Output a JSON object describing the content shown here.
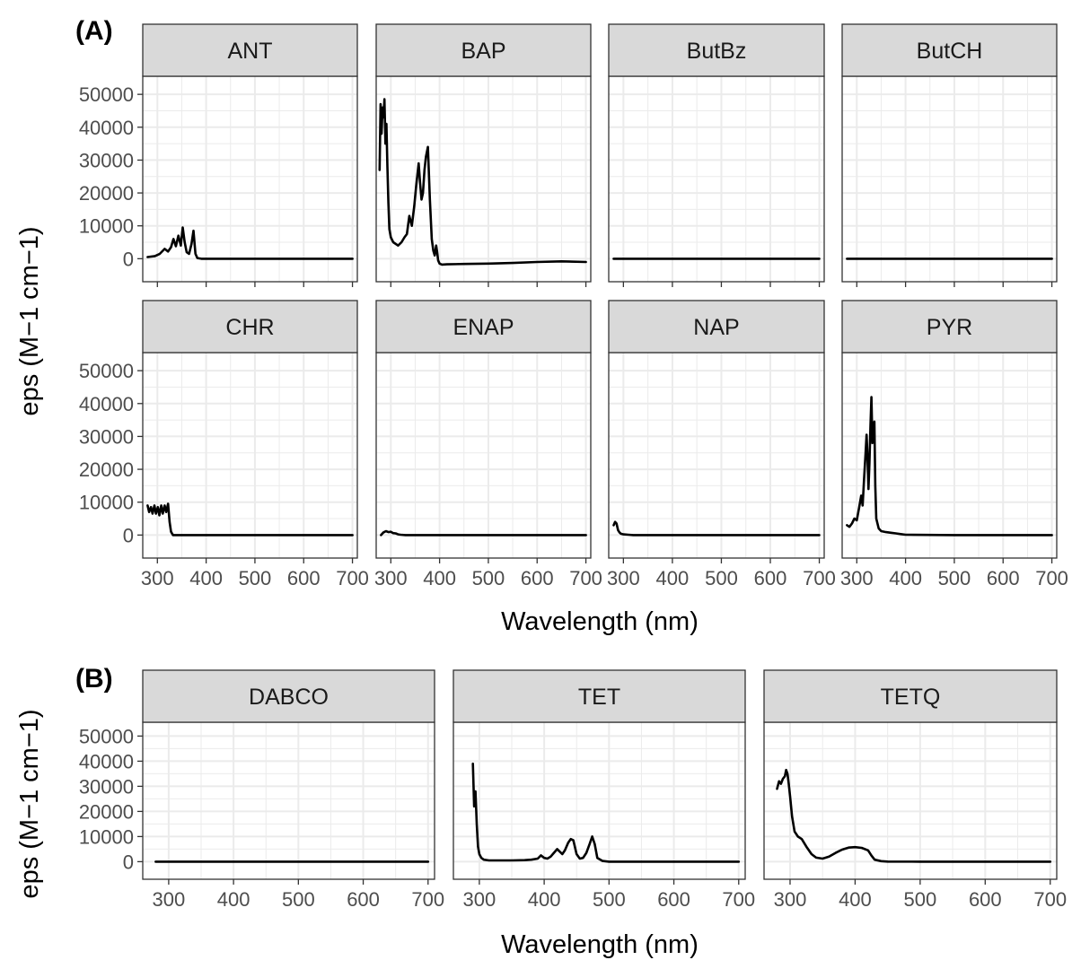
{
  "figure": {
    "panel_a_label": "(A)",
    "panel_b_label": "(B)",
    "panel_a_xlabel": "Wavelength (nm)",
    "panel_a_ylabel": "eps (M−1 cm−1)",
    "panel_b_xlabel": "Wavelength (nm)",
    "panel_b_ylabel": "eps (M−1 cm−1)",
    "line_color": "#000000",
    "strip_fill": "#d9d9d9",
    "grid_color": "#ebebeb"
  },
  "chart_data": [
    {
      "panel": "A",
      "type": "line",
      "xlabel": "Wavelength (nm)",
      "ylabel": "eps (M−1 cm−1)",
      "xlim": [
        270,
        710
      ],
      "ylim": [
        -7000,
        55500
      ],
      "x_ticks": [
        "300",
        "400",
        "500",
        "600",
        "700"
      ],
      "y_ticks": [
        "0",
        "10000",
        "20000",
        "30000",
        "40000",
        "50000"
      ],
      "grid": true,
      "facets": [
        {
          "name": "ANT",
          "x": [
            280,
            295,
            305,
            315,
            322,
            328,
            333,
            338,
            343,
            348,
            352,
            356,
            360,
            365,
            370,
            374,
            378,
            382,
            390,
            400,
            500,
            600,
            700
          ],
          "y": [
            500,
            800,
            1500,
            3000,
            2200,
            3500,
            6000,
            3800,
            7000,
            4000,
            9500,
            5000,
            2000,
            1500,
            4500,
            8500,
            1500,
            200,
            0,
            0,
            0,
            0,
            0
          ]
        },
        {
          "name": "BAP",
          "x": [
            277,
            279,
            281,
            283,
            285,
            287,
            289,
            291,
            293,
            295,
            297,
            300,
            305,
            315,
            322,
            328,
            333,
            338,
            343,
            348,
            352,
            357,
            360,
            363,
            366,
            369,
            372,
            376,
            380,
            384,
            387,
            390,
            393,
            395,
            397,
            400,
            405,
            415,
            450,
            500,
            550,
            600,
            650,
            700
          ],
          "y": [
            27000,
            47000,
            38000,
            46000,
            43000,
            48500,
            35000,
            41000,
            28000,
            17000,
            9000,
            6500,
            5000,
            4000,
            5000,
            6500,
            7500,
            13000,
            10000,
            16000,
            22000,
            29000,
            23000,
            18000,
            20000,
            27000,
            31000,
            34000,
            18000,
            6000,
            2500,
            1000,
            4000,
            2000,
            -500,
            -1500,
            -1800,
            -1700,
            -1600,
            -1500,
            -1300,
            -1000,
            -800,
            -1000
          ]
        },
        {
          "name": "ButBz",
          "x": [
            280,
            300,
            400,
            500,
            600,
            700
          ],
          "y": [
            0,
            0,
            0,
            0,
            0,
            0
          ]
        },
        {
          "name": "ButCH",
          "x": [
            280,
            300,
            400,
            500,
            600,
            700
          ],
          "y": [
            0,
            0,
            0,
            0,
            0,
            0
          ]
        },
        {
          "name": "CHR",
          "x": [
            280,
            283,
            287,
            290,
            294,
            297,
            301,
            304,
            308,
            311,
            315,
            318,
            322,
            325,
            328,
            332,
            340,
            400,
            500,
            600,
            700
          ],
          "y": [
            9000,
            7000,
            8500,
            6500,
            9000,
            6500,
            8500,
            6000,
            9000,
            6500,
            9000,
            7000,
            9500,
            4000,
            1000,
            0,
            0,
            0,
            0,
            0,
            0
          ]
        },
        {
          "name": "ENAP",
          "x": [
            280,
            285,
            290,
            295,
            300,
            305,
            310,
            315,
            320,
            330,
            400,
            500,
            600,
            700
          ],
          "y": [
            0,
            800,
            1200,
            900,
            1000,
            600,
            500,
            200,
            100,
            0,
            0,
            0,
            0,
            0
          ]
        },
        {
          "name": "NAP",
          "x": [
            280,
            283,
            286,
            289,
            292,
            295,
            300,
            310,
            320,
            400,
            500,
            600,
            700
          ],
          "y": [
            3000,
            4000,
            3500,
            1500,
            800,
            400,
            200,
            100,
            0,
            0,
            0,
            0,
            0
          ]
        },
        {
          "name": "PYR",
          "x": [
            280,
            285,
            290,
            295,
            300,
            305,
            309,
            312,
            315,
            318,
            320,
            322,
            324,
            326,
            328,
            330,
            332,
            334,
            336,
            338,
            340,
            345,
            350,
            360,
            370,
            380,
            390,
            400,
            500,
            600,
            700
          ],
          "y": [
            3000,
            2500,
            3500,
            5000,
            4500,
            8500,
            12000,
            9000,
            17000,
            25000,
            30500,
            24000,
            14000,
            22000,
            33000,
            42000,
            28000,
            33000,
            34500,
            15000,
            5000,
            2000,
            1200,
            900,
            700,
            500,
            300,
            100,
            0,
            0,
            0
          ]
        }
      ]
    },
    {
      "panel": "B",
      "type": "line",
      "xlabel": "Wavelength (nm)",
      "ylabel": "eps (M−1 cm−1)",
      "xlim": [
        260,
        710
      ],
      "ylim": [
        -7000,
        55500
      ],
      "x_ticks": [
        "300",
        "400",
        "500",
        "600",
        "700"
      ],
      "y_ticks": [
        "0",
        "10000",
        "20000",
        "30000",
        "40000",
        "50000"
      ],
      "grid": true,
      "facets": [
        {
          "name": "DABCO",
          "x": [
            280,
            300,
            400,
            500,
            600,
            700
          ],
          "y": [
            0,
            0,
            0,
            0,
            0,
            0
          ]
        },
        {
          "name": "TET",
          "x": [
            290,
            292,
            294,
            296,
            298,
            300,
            303,
            307,
            315,
            330,
            350,
            370,
            380,
            390,
            395,
            400,
            405,
            410,
            415,
            420,
            428,
            432,
            437,
            441,
            445,
            450,
            455,
            460,
            465,
            470,
            474,
            478,
            482,
            490,
            500,
            550,
            600,
            650,
            700
          ],
          "y": [
            39000,
            22000,
            28000,
            15000,
            6000,
            3000,
            1500,
            800,
            500,
            500,
            500,
            600,
            800,
            1200,
            2500,
            1500,
            1200,
            2000,
            3500,
            5000,
            3000,
            4500,
            7500,
            9000,
            8500,
            3000,
            1200,
            1500,
            3500,
            7000,
            10000,
            7000,
            1500,
            300,
            0,
            0,
            0,
            0,
            0
          ]
        },
        {
          "name": "TETQ",
          "x": [
            280,
            283,
            286,
            289,
            292,
            294,
            296,
            298,
            300,
            303,
            307,
            312,
            318,
            325,
            333,
            340,
            350,
            360,
            370,
            380,
            390,
            400,
            410,
            420,
            425,
            430,
            440,
            450,
            500,
            550,
            600,
            650,
            700
          ],
          "y": [
            29000,
            32000,
            31000,
            33000,
            34000,
            36500,
            35000,
            31000,
            26000,
            18000,
            12000,
            10000,
            9000,
            6000,
            3000,
            1600,
            1200,
            2000,
            3500,
            4800,
            5600,
            5800,
            5500,
            4500,
            2500,
            800,
            200,
            50,
            0,
            0,
            0,
            0,
            0
          ]
        }
      ]
    }
  ]
}
